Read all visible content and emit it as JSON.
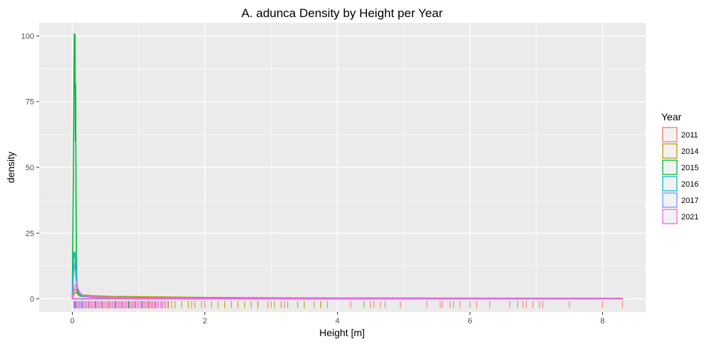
{
  "chart_data": {
    "type": "density",
    "title": "A. adunca Density by Height per Year",
    "xlabel": "Height [m]",
    "ylabel": "density",
    "xlim": [
      -0.5,
      8.65
    ],
    "ylim": [
      -5,
      105
    ],
    "x_ticks": [
      0,
      2,
      4,
      6,
      8
    ],
    "y_ticks": [
      0,
      25,
      50,
      75,
      100
    ],
    "x_tick_labels": [
      "0",
      "2",
      "4",
      "6",
      "8"
    ],
    "y_tick_labels": [
      "0",
      "25",
      "50",
      "75",
      "100"
    ],
    "grid": true,
    "legend": {
      "title": "Year",
      "placement": "right",
      "entries": [
        "2011",
        "2014",
        "2015",
        "2016",
        "2017",
        "2021"
      ]
    },
    "series": [
      {
        "name": "2011",
        "color": "#F8766D",
        "x": [
          0.0,
          0.02,
          0.05,
          0.1,
          0.2,
          0.5,
          1.0,
          2.0,
          4.0,
          6.0,
          8.3
        ],
        "y": [
          0.0,
          3.0,
          3.5,
          2.0,
          1.0,
          0.6,
          0.45,
          0.35,
          0.25,
          0.2,
          0.15
        ],
        "rug": [
          0.05,
          0.1,
          0.2,
          0.3,
          0.5,
          0.7,
          0.9,
          1.0,
          1.2,
          1.5,
          1.8,
          2.0,
          2.3,
          2.5,
          2.8,
          3.0,
          3.2,
          3.5,
          3.75,
          3.85,
          4.2,
          4.5,
          4.55,
          4.65,
          4.72,
          4.95,
          5.35,
          5.55,
          5.58,
          5.7,
          5.75,
          5.85,
          6.0,
          6.1,
          6.3,
          6.6,
          6.72,
          6.8,
          6.85,
          6.95,
          7.05,
          7.1,
          7.5,
          8.0,
          8.3
        ]
      },
      {
        "name": "2014",
        "color": "#B79F00",
        "x": [
          0.0,
          0.02,
          0.04,
          0.08,
          0.15,
          0.3,
          0.6,
          1.0,
          1.3,
          2.0,
          3.0,
          4.0,
          8.3
        ],
        "y": [
          0.0,
          1.5,
          2.5,
          2.0,
          1.5,
          1.2,
          0.9,
          0.8,
          0.7,
          0.5,
          0.4,
          0.3,
          0.2
        ],
        "rug": [
          0.05,
          0.1,
          0.15,
          0.2,
          0.25,
          0.3,
          0.35,
          0.4,
          0.45,
          0.5,
          0.55,
          0.6,
          0.65,
          0.7,
          0.75,
          0.8,
          0.85,
          0.9,
          0.95,
          1.0,
          1.05,
          1.1,
          1.15,
          1.2,
          1.25,
          1.3,
          1.35,
          1.45,
          1.55,
          1.65,
          1.75,
          1.85,
          1.95,
          2.1,
          2.2,
          2.3,
          2.4,
          2.5,
          2.6,
          2.7,
          2.8,
          2.95,
          3.05,
          3.15,
          3.25,
          3.4,
          3.5,
          3.65,
          3.75,
          4.4
        ]
      },
      {
        "name": "2015",
        "color": "#00BA38",
        "x": [
          0.0,
          0.01,
          0.02,
          0.03,
          0.035,
          0.04,
          0.045,
          0.05,
          0.055,
          0.06,
          0.065,
          0.07,
          0.08,
          0.1,
          0.15,
          0.3,
          0.6,
          1.0,
          1.4,
          2.0,
          3.0,
          8.3
        ],
        "y": [
          0.0,
          32.0,
          66.0,
          100.8,
          80.0,
          100.5,
          60.0,
          81.5,
          42.0,
          25.0,
          10.0,
          4.0,
          2.0,
          1.2,
          0.9,
          0.7,
          0.6,
          0.5,
          0.4,
          0.3,
          0.2,
          0.1
        ],
        "rug": [
          0.05,
          0.15,
          0.35,
          0.5,
          0.65,
          0.8,
          0.85,
          1.0,
          1.05,
          1.2
        ]
      },
      {
        "name": "2016",
        "color": "#00BFC4",
        "x": [
          0.0,
          0.01,
          0.02,
          0.03,
          0.04,
          0.05,
          0.06,
          0.07,
          0.08,
          0.1,
          0.15,
          0.3,
          0.6,
          1.0,
          2.0,
          8.3
        ],
        "y": [
          0.0,
          8.0,
          17.5,
          16.0,
          17.8,
          12.0,
          10.0,
          6.0,
          4.0,
          2.0,
          1.0,
          0.6,
          0.4,
          0.3,
          0.2,
          0.1
        ],
        "rug": [
          0.04,
          0.08,
          0.12,
          0.2
        ]
      },
      {
        "name": "2017",
        "color": "#619CFF",
        "x": [
          0.0,
          0.01,
          0.02,
          0.03,
          0.04,
          0.05,
          0.06,
          0.08,
          0.1,
          0.15,
          0.3,
          0.6,
          1.0,
          2.0,
          8.3
        ],
        "y": [
          0.0,
          5.0,
          11.0,
          12.0,
          14.0,
          9.0,
          7.0,
          4.0,
          2.5,
          1.2,
          0.7,
          0.5,
          0.35,
          0.25,
          0.1
        ],
        "rug": [
          0.03,
          0.06,
          0.1,
          0.15
        ]
      },
      {
        "name": "2021",
        "color": "#F564E3",
        "x": [
          0.0,
          0.01,
          0.02,
          0.04,
          0.06,
          0.08,
          0.1,
          0.12,
          0.15,
          0.2,
          0.3,
          0.5,
          1.0,
          1.4,
          2.0,
          4.0,
          8.3
        ],
        "y": [
          0.0,
          1.5,
          3.0,
          5.0,
          5.6,
          4.2,
          3.0,
          2.2,
          1.5,
          1.0,
          0.8,
          0.6,
          0.4,
          0.3,
          0.2,
          0.15,
          0.1
        ],
        "rug": [
          0.02,
          0.04,
          0.06,
          0.08,
          0.1,
          0.12,
          0.14,
          0.16,
          0.18,
          0.2,
          0.22,
          0.24,
          0.26,
          0.28,
          0.3,
          0.32,
          0.34,
          0.36,
          0.38,
          0.4,
          0.42,
          0.44,
          0.46,
          0.48,
          0.5,
          0.52,
          0.54,
          0.56,
          0.58,
          0.6,
          0.62,
          0.64,
          0.66,
          0.68,
          0.7,
          0.72,
          0.74,
          0.76,
          0.78,
          0.8,
          0.82,
          0.84,
          0.86,
          0.88,
          0.9,
          0.92,
          0.94,
          0.96,
          0.98,
          1.0,
          1.02,
          1.04,
          1.06,
          1.08,
          1.1,
          1.12,
          1.14,
          1.16,
          1.18,
          1.2,
          1.22,
          1.24,
          1.26,
          1.28,
          1.3,
          1.33,
          1.36,
          1.39,
          1.41,
          1.44
        ]
      }
    ]
  }
}
